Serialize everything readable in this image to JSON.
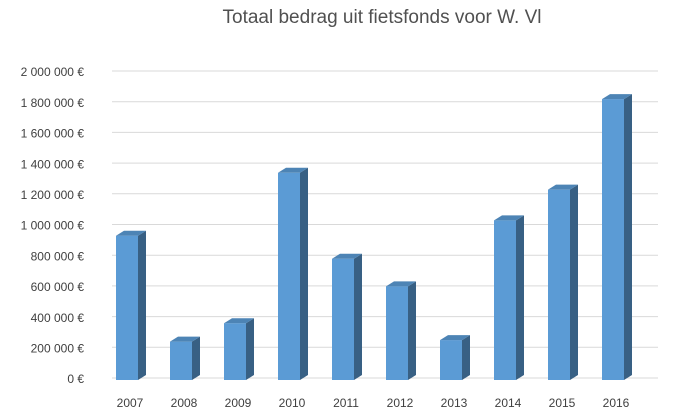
{
  "chart_data": {
    "type": "bar3d",
    "title": "Totaal bedrag uit fietsfonds voor W. Vl",
    "categories": [
      "2007",
      "2008",
      "2009",
      "2010",
      "2011",
      "2012",
      "2013",
      "2014",
      "2015",
      "2016"
    ],
    "values": [
      940000,
      250000,
      370000,
      1350000,
      790000,
      610000,
      260000,
      1040000,
      1240000,
      1830000
    ],
    "color": "#5b9bd5",
    "ylim": [
      0,
      2000000
    ],
    "yticks": [
      {
        "value": 0,
        "label": "0 €"
      },
      {
        "value": 200000,
        "label": "200 000 €"
      },
      {
        "value": 400000,
        "label": "400 000 €"
      },
      {
        "value": 600000,
        "label": "600 000 €"
      },
      {
        "value": 800000,
        "label": "800 000 €"
      },
      {
        "value": 1000000,
        "label": "1 000 000 €"
      },
      {
        "value": 1200000,
        "label": "1 200 000 €"
      },
      {
        "value": 1400000,
        "label": "1 400 000 €"
      },
      {
        "value": 1600000,
        "label": "1 600 000 €"
      },
      {
        "value": 1800000,
        "label": "1 800 000 €"
      },
      {
        "value": 2000000,
        "label": "2 000 000 €"
      }
    ],
    "grid": true
  }
}
